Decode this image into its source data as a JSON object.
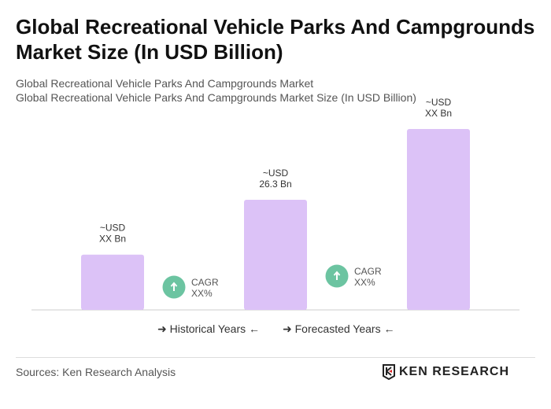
{
  "title": "Global Recreational Vehicle Parks And Campgrounds Market Size (In USD Billion)",
  "subtitle1": "Global Recreational Vehicle Parks And Campgrounds Market",
  "subtitle2": "Global Recreational Vehicle Parks And Campgrounds Market Size (In USD Billion)",
  "chart_data": {
    "type": "bar",
    "bar_color": "#dcc2f7",
    "values": [
      13.2,
      26.3,
      43.2
    ],
    "data_labels": [
      [
        "~USD",
        "XX Bn"
      ],
      [
        "~USD",
        "26.3 Bn"
      ],
      [
        "~USD",
        "XX Bn"
      ]
    ],
    "cagr": [
      {
        "label": "CAGR",
        "value": "XX%"
      },
      {
        "label": "CAGR",
        "value": "XX%"
      }
    ],
    "cagr_color": "#6cc4a1",
    "legend": [
      "Historical Years",
      "Forecasted Years"
    ]
  },
  "sources": "Sources: Ken Research Analysis",
  "logo": "KEN RESEARCH"
}
